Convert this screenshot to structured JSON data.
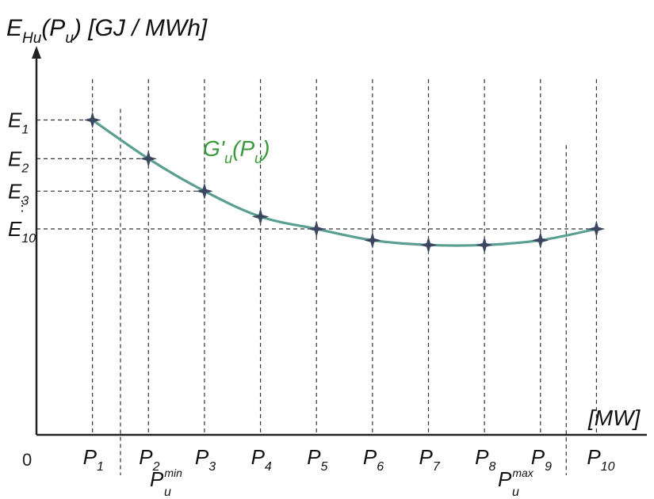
{
  "chart_data": {
    "type": "line",
    "ylabel": {
      "main": "E",
      "sub": "Hu",
      "rest1": "(P",
      "rest_sub": "u",
      "rest2": ") [GJ / MWh]"
    },
    "xlabel": "[MW]",
    "origin_label": "0",
    "curve_label": {
      "main": "G'",
      "sub": "u",
      "rest1": "(P",
      "rest_sub": "u",
      "rest2": ")"
    },
    "colors": {
      "curve": "#5b9f93",
      "curve_label": "#3a9a3a",
      "marker": "#3b4660",
      "axis": "#222222"
    },
    "x_ticks": [
      {
        "main": "P",
        "sub": "1"
      },
      {
        "main": "P",
        "sub": "2"
      },
      {
        "main": "P",
        "sub": "3"
      },
      {
        "main": "P",
        "sub": "4"
      },
      {
        "main": "P",
        "sub": "5"
      },
      {
        "main": "P",
        "sub": "6"
      },
      {
        "main": "P",
        "sub": "7"
      },
      {
        "main": "P",
        "sub": "8"
      },
      {
        "main": "P",
        "sub": "9"
      },
      {
        "main": "P",
        "sub": "10"
      }
    ],
    "y_ticks": [
      {
        "main": "E",
        "sub": "1",
        "value": 1.0
      },
      {
        "main": "E",
        "sub": "2",
        "value": 0.877
      },
      {
        "main": "E",
        "sub": "3",
        "value": 0.774
      },
      {
        "main": "E",
        "sub": "10",
        "value": 0.654
      }
    ],
    "y_ellipsis": "⋮",
    "pmin": {
      "main": "P",
      "sub": "u",
      "sup": "min",
      "between": [
        1,
        2
      ]
    },
    "pmax": {
      "main": "P",
      "sub": "u",
      "sup": "max",
      "between": [
        9,
        10
      ]
    },
    "x": [
      1,
      2,
      3,
      4,
      5,
      6,
      7,
      8,
      9,
      10
    ],
    "series": [
      {
        "name": "G'u(Pu)",
        "values": [
          1.0,
          0.877,
          0.774,
          0.693,
          0.654,
          0.618,
          0.603,
          0.603,
          0.618,
          0.654
        ]
      }
    ],
    "xlim": [
      0,
      10.9
    ],
    "ylim": [
      0,
      1.2
    ],
    "grid": false,
    "marker": "star"
  }
}
